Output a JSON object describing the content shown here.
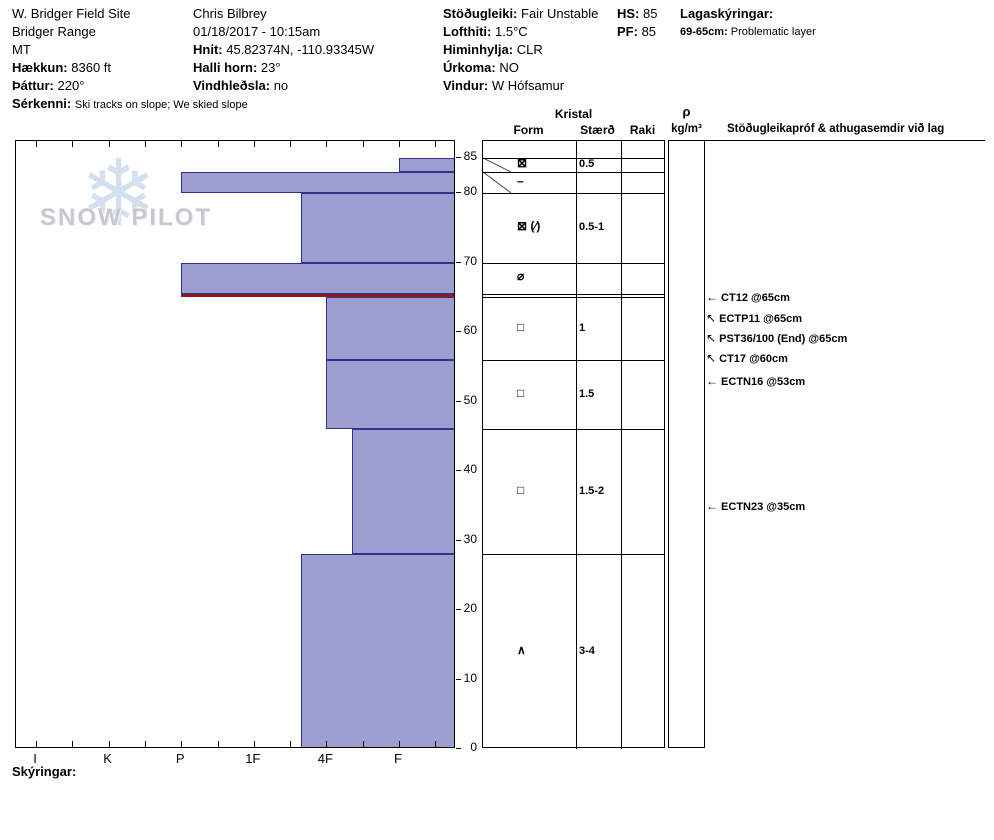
{
  "watermark": "SNOW PILOT",
  "header": {
    "site": {
      "name": "W. Bridger Field Site",
      "range": "Bridger Range",
      "state": "MT",
      "elev_label": "Hækkun:",
      "elev": "8360 ft",
      "aspect_label": "Þáttur:",
      "aspect": "220°",
      "features_label": "Sérkenni:",
      "features": "Ski tracks on slope; We skied slope"
    },
    "observer": {
      "name": "Chris Bilbrey",
      "date": "01/18/2017 - 10:15am",
      "coord_label": "Hnit:",
      "coord": "45.82374N, -110.93345W",
      "slope_label": "Halli horn:",
      "slope": "23°",
      "windload_label": "Vindhleðsla:",
      "windload": "no"
    },
    "conditions": {
      "stab_label": "Stöðugleiki:",
      "stab": "Fair Unstable",
      "air_label": "Lofthiti:",
      "air": "1.5°C",
      "sky_label": "Himinhylja:",
      "sky": "CLR",
      "precip_label": "Úrkoma:",
      "precip": "NO",
      "wind_label": "Vindur:",
      "wind": "W Hófsamur"
    },
    "totals": {
      "hs_label": "HS:",
      "hs": "85",
      "pf_label": "PF:",
      "pf": "85"
    },
    "layer_notes": {
      "title": "Lagaskýringar:",
      "range": "69-65cm:",
      "text": "Problematic layer"
    }
  },
  "table": {
    "kristal": "Kristal",
    "form": "Form",
    "size": "Stærð",
    "moisture": "Raki",
    "rho": "ρ",
    "rho_unit": "kg/m³",
    "tests_header": "Stöðugleikapróf & athugasemdir við lag"
  },
  "footer": {
    "legend": "Skýringar:"
  },
  "chart_data": {
    "type": "bar",
    "subtype": "snow-hardness-profile",
    "depth_unit": "cm",
    "ylim": [
      0,
      87.5
    ],
    "depth_ticks": [
      0,
      10,
      20,
      30,
      40,
      50,
      60,
      70,
      80,
      85
    ],
    "hardness_scale": [
      "I",
      "K",
      "P",
      "1F",
      "4F",
      "F"
    ],
    "layers": [
      {
        "from_depth": 85,
        "to_depth": 83,
        "hardness": "F"
      },
      {
        "from_depth": 83,
        "to_depth": 80,
        "hardness": "P"
      },
      {
        "from_depth": 80,
        "to_depth": 70,
        "hardness": "4F+"
      },
      {
        "from_depth": 70,
        "to_depth": 65.5,
        "hardness": "P"
      },
      {
        "from_depth": 65.5,
        "to_depth": 65,
        "hardness": "P",
        "weak_layer": true
      },
      {
        "from_depth": 65,
        "to_depth": 56,
        "hardness": "4F"
      },
      {
        "from_depth": 56,
        "to_depth": 46,
        "hardness": "4F"
      },
      {
        "from_depth": 46,
        "to_depth": 28,
        "hardness": "4F-"
      },
      {
        "from_depth": 28,
        "to_depth": 0,
        "hardness": "4F+"
      }
    ],
    "grains": [
      {
        "from_depth": 85,
        "to_depth": 83,
        "form": "⊠",
        "size": "0.5"
      },
      {
        "from_depth": 83,
        "to_depth": 80,
        "form": "–",
        "size": ""
      },
      {
        "from_depth": 80,
        "to_depth": 70,
        "form": "⊠ (∕)",
        "size": "0.5-1"
      },
      {
        "from_depth": 70,
        "to_depth": 65.5,
        "form": "⌀",
        "size": ""
      },
      {
        "from_depth": 65.5,
        "to_depth": 65,
        "form": "",
        "size": ""
      },
      {
        "from_depth": 65,
        "to_depth": 56,
        "form": "□",
        "size": "1"
      },
      {
        "from_depth": 56,
        "to_depth": 46,
        "form": "□",
        "size": "1.5"
      },
      {
        "from_depth": 46,
        "to_depth": 28,
        "form": "□",
        "size": "1.5-2"
      },
      {
        "from_depth": 28,
        "to_depth": 0,
        "form": "∧",
        "size": "3-4"
      }
    ],
    "tests": [
      {
        "name": "CT12 @65cm",
        "arrow": "←",
        "at": 65
      },
      {
        "name": "ECTP11 @65cm",
        "arrow": "↖",
        "at": 62
      },
      {
        "name": "PST36/100 (End) @65cm",
        "arrow": "↖",
        "at": 59.2
      },
      {
        "name": "CT17 @60cm",
        "arrow": "↖",
        "at": 56.3
      },
      {
        "name": "ECTN16 @53cm",
        "arrow": "←",
        "at": 53
      },
      {
        "name": "ECTN23 @35cm",
        "arrow": "←",
        "at": 35
      }
    ],
    "colors": {
      "bar_fill": "#9d9ed0",
      "bar_border": "#2e3192",
      "weak_layer": "#8b1a1a"
    }
  }
}
